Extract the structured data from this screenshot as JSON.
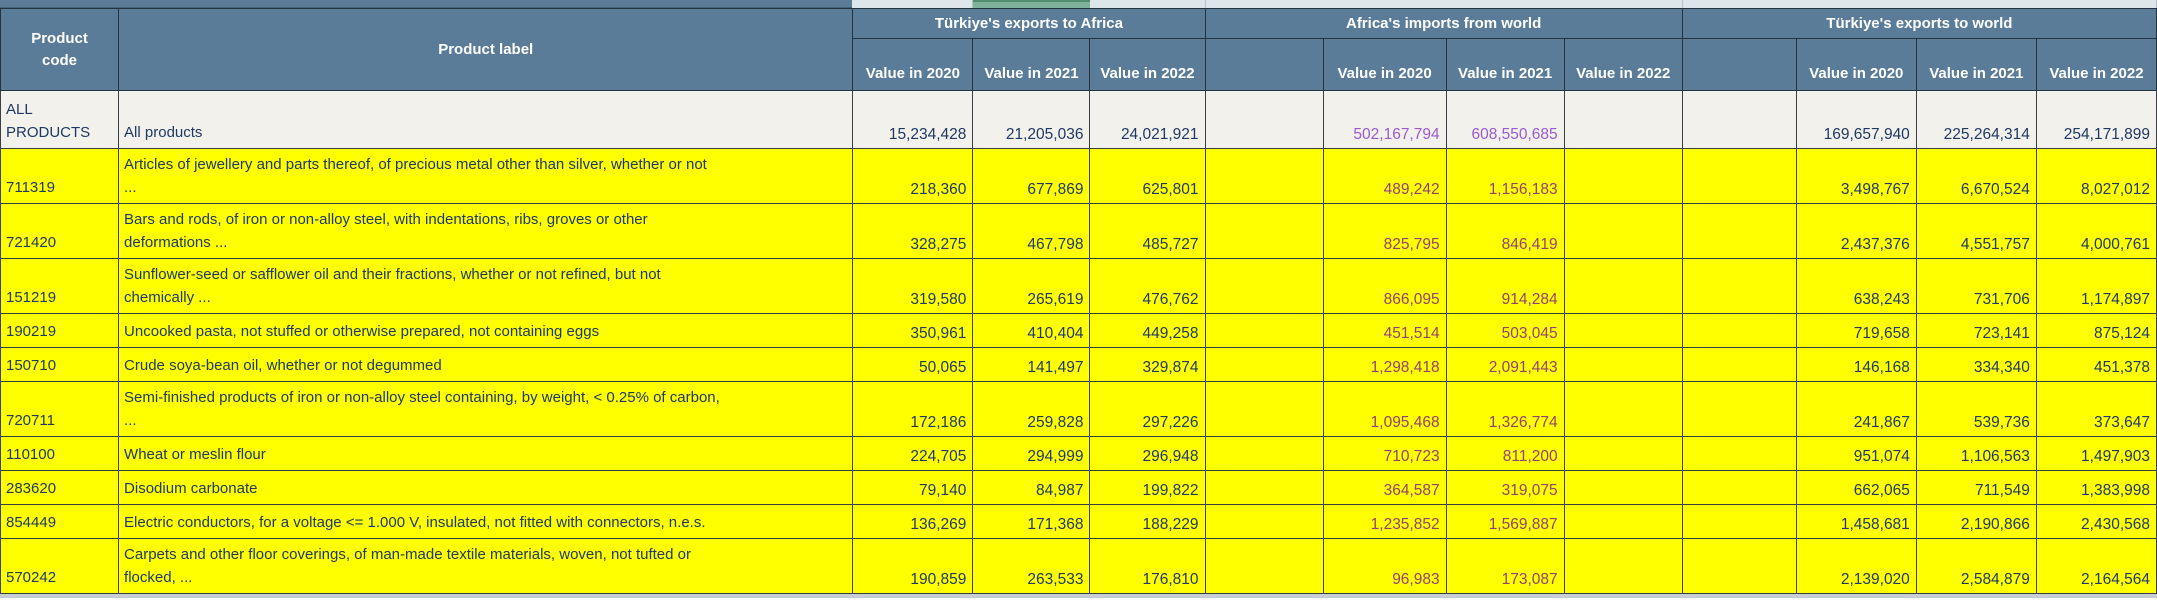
{
  "table": {
    "headers": {
      "product_code": "Product\ncode",
      "product_label": "Product label"
    },
    "groups": [
      {
        "label": "Türkiye's exports to Africa",
        "subheaders": [
          "Value in 2020",
          "Value in 2021",
          "Value in 2022"
        ]
      },
      {
        "label": "Africa's imports from world",
        "subheaders": [
          "Value in 2020",
          "Value in 2021",
          "Value in 2022"
        ]
      },
      {
        "label": "Türkiye's exports to world",
        "subheaders": [
          "Value in 2020",
          "Value in 2021",
          "Value in 2022"
        ]
      }
    ],
    "rows": [
      {
        "code": "ALL\nPRODUCTS",
        "label": "All products",
        "highlight": false,
        "g1": [
          "15,234,428",
          "21,205,036",
          "24,021,921"
        ],
        "g2": [
          "502,167,794",
          "608,550,685",
          ""
        ],
        "g3": [
          "169,657,940",
          "225,264,314",
          "254,171,899"
        ]
      },
      {
        "code": "711319",
        "label": "Articles of jewellery and parts thereof, of precious metal other than silver, whether or not\n...",
        "highlight": true,
        "g1": [
          "218,360",
          "677,869",
          "625,801"
        ],
        "g2": [
          "489,242",
          "1,156,183",
          ""
        ],
        "g3": [
          "3,498,767",
          "6,670,524",
          "8,027,012"
        ]
      },
      {
        "code": "721420",
        "label": "Bars and rods, of iron or non-alloy steel, with indentations, ribs, groves or other\ndeformations ...",
        "highlight": true,
        "g1": [
          "328,275",
          "467,798",
          "485,727"
        ],
        "g2": [
          "825,795",
          "846,419",
          ""
        ],
        "g3": [
          "2,437,376",
          "4,551,757",
          "4,000,761"
        ]
      },
      {
        "code": "151219",
        "label": "Sunflower-seed or safflower oil and their fractions, whether or not refined, but not\nchemically ...",
        "highlight": true,
        "g1": [
          "319,580",
          "265,619",
          "476,762"
        ],
        "g2": [
          "866,095",
          "914,284",
          ""
        ],
        "g3": [
          "638,243",
          "731,706",
          "1,174,897"
        ]
      },
      {
        "code": "190219",
        "label": "Uncooked pasta, not stuffed or otherwise prepared, not containing eggs",
        "highlight": true,
        "g1": [
          "350,961",
          "410,404",
          "449,258"
        ],
        "g2": [
          "451,514",
          "503,045",
          ""
        ],
        "g3": [
          "719,658",
          "723,141",
          "875,124"
        ]
      },
      {
        "code": "150710",
        "label": "Crude soya-bean oil, whether or not degummed",
        "highlight": true,
        "g1": [
          "50,065",
          "141,497",
          "329,874"
        ],
        "g2": [
          "1,298,418",
          "2,091,443",
          ""
        ],
        "g3": [
          "146,168",
          "334,340",
          "451,378"
        ]
      },
      {
        "code": "720711",
        "label": "Semi-finished products of iron or non-alloy steel containing, by weight, < 0.25% of carbon,\n...",
        "highlight": true,
        "g1": [
          "172,186",
          "259,828",
          "297,226"
        ],
        "g2": [
          "1,095,468",
          "1,326,774",
          ""
        ],
        "g3": [
          "241,867",
          "539,736",
          "373,647"
        ]
      },
      {
        "code": "110100",
        "label": "Wheat or meslin flour",
        "highlight": true,
        "g1": [
          "224,705",
          "294,999",
          "296,948"
        ],
        "g2": [
          "710,723",
          "811,200",
          ""
        ],
        "g3": [
          "951,074",
          "1,106,563",
          "1,497,903"
        ]
      },
      {
        "code": "283620",
        "label": "Disodium carbonate",
        "highlight": true,
        "g1": [
          "79,140",
          "84,987",
          "199,822"
        ],
        "g2": [
          "364,587",
          "319,075",
          ""
        ],
        "g3": [
          "662,065",
          "711,549",
          "1,383,998"
        ]
      },
      {
        "code": "854449",
        "label": "Electric conductors, for a voltage <= 1.000 V, insulated, not fitted with connectors, n.e.s.",
        "highlight": true,
        "g1": [
          "136,269",
          "171,368",
          "188,229"
        ],
        "g2": [
          "1,235,852",
          "1,569,887",
          ""
        ],
        "g3": [
          "1,458,681",
          "2,190,866",
          "2,430,568"
        ]
      },
      {
        "code": "570242",
        "label": "Carpets and other floor coverings, of man-made textile materials, woven, not tufted or\nflocked, ...",
        "highlight": true,
        "g1": [
          "190,859",
          "263,533",
          "176,810"
        ],
        "g2": [
          "96,983",
          "173,087",
          ""
        ],
        "g3": [
          "2,139,020",
          "2,584,879",
          "2,164,564"
        ]
      }
    ]
  },
  "colors": {
    "header_bg": "#5b7c99",
    "row_highlight": "#ffff00",
    "row_plain": "#f2f1ec",
    "value_color": "#1f3864",
    "africa_values_on_plain_row": "#9a5bd2",
    "africa_values_on_yellow_row": "#96406f",
    "top_strip_green": "#7fb29a"
  }
}
